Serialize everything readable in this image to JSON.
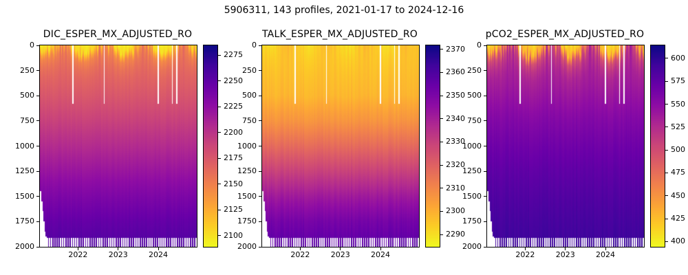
{
  "figure": {
    "title": "5906311, 143 profiles, 2021-01-17 to 2024-12-16",
    "platform_id": "5906311",
    "n_profiles": 143,
    "date_range": [
      "2021-01-17",
      "2024-12-16"
    ]
  },
  "colormap": {
    "name": "plasma_reversed_yellow_low_purple_high",
    "positions": [
      0,
      0.1,
      0.2,
      0.3,
      0.4,
      0.5,
      0.6,
      0.7,
      0.8,
      0.9,
      1
    ],
    "colors": [
      "#0d0887",
      "#41049d",
      "#6a00a8",
      "#8f0da4",
      "#b12a90",
      "#cc4778",
      "#e16462",
      "#f2844b",
      "#fca636",
      "#fcce25",
      "#f0f921"
    ]
  },
  "profiles": {
    "count": 143,
    "missing_time_fractions": [
      0.21,
      0.41,
      0.755,
      0.845,
      0.875
    ],
    "missing_max_depth_m": 580,
    "initial_max_depths_m": [
      1450,
      1550,
      1650,
      1750,
      1850,
      1900
    ],
    "alternating_max_depths_m": [
      1915,
      2000
    ]
  },
  "chart_data": [
    {
      "type": "heatmap",
      "title": "DIC_ESPER_MX_ADJUSTED_RO",
      "x_range": [
        2021.05,
        2024.96
      ],
      "x_ticks": [
        2022,
        2023,
        2024
      ],
      "y_range": [
        0,
        2000
      ],
      "y_ticks": [
        0,
        250,
        500,
        750,
        1000,
        1250,
        1500,
        1750,
        2000
      ],
      "y_inverted": true,
      "colorbar": {
        "vmin": 2090,
        "vmax": 2285,
        "ticks": [
          2100,
          2125,
          2150,
          2175,
          2200,
          2225,
          2250,
          2275
        ]
      },
      "depth_profile": {
        "depths_m": [
          0,
          100,
          200,
          300,
          500,
          750,
          1000,
          1250,
          1500,
          1750,
          2000
        ],
        "values": [
          2105,
          2148,
          2160,
          2167,
          2177,
          2191,
          2206,
          2221,
          2236,
          2249,
          2258
        ]
      },
      "variability": {
        "isoline_amp": 0.65,
        "isoline_decay_m": 240,
        "surface_amp": 12,
        "deep_jitter": 4,
        "phase": 4.0
      }
    },
    {
      "type": "heatmap",
      "title": "TALK_ESPER_MX_ADJUSTED_RO",
      "x_range": [
        2021.05,
        2024.96
      ],
      "x_ticks": [
        2022,
        2023,
        2024
      ],
      "y_range": [
        0,
        2000
      ],
      "y_ticks": [
        0,
        250,
        500,
        750,
        1000,
        1250,
        1500,
        1750,
        2000
      ],
      "y_inverted": true,
      "colorbar": {
        "vmin": 2285,
        "vmax": 2372,
        "ticks": [
          2290,
          2300,
          2310,
          2320,
          2330,
          2340,
          2350,
          2360,
          2370
        ]
      },
      "depth_profile": {
        "depths_m": [
          0,
          100,
          200,
          300,
          500,
          750,
          1000,
          1250,
          1500,
          1750,
          2000
        ],
        "values": [
          2294,
          2295,
          2296,
          2297,
          2299,
          2307,
          2318,
          2330,
          2342,
          2352,
          2358
        ]
      },
      "variability": {
        "isoline_amp": 0.55,
        "isoline_decay_m": 280,
        "surface_amp": 5,
        "deep_jitter": 3,
        "phase": 3.6
      }
    },
    {
      "type": "heatmap",
      "title": "pCO2_ESPER_MX_ADJUSTED_RO",
      "x_range": [
        2021.05,
        2024.96
      ],
      "x_ticks": [
        2022,
        2023,
        2024
      ],
      "y_range": [
        0,
        2000
      ],
      "y_ticks": [
        0,
        250,
        500,
        750,
        1000,
        1250,
        1500,
        1750,
        2000
      ],
      "y_inverted": true,
      "colorbar": {
        "vmin": 395,
        "vmax": 615,
        "ticks": [
          400,
          425,
          450,
          475,
          500,
          525,
          550,
          575,
          600
        ]
      },
      "depth_profile": {
        "depths_m": [
          0,
          100,
          200,
          300,
          500,
          750,
          1000,
          1250,
          1500,
          1750,
          2000
        ],
        "values": [
          430,
          500,
          521,
          532,
          543,
          557,
          568,
          577,
          584,
          590,
          595
        ]
      },
      "variability": {
        "isoline_amp": 0.75,
        "isoline_decay_m": 420,
        "surface_amp": 28,
        "deep_jitter": 6,
        "phase": 4.0
      }
    }
  ]
}
